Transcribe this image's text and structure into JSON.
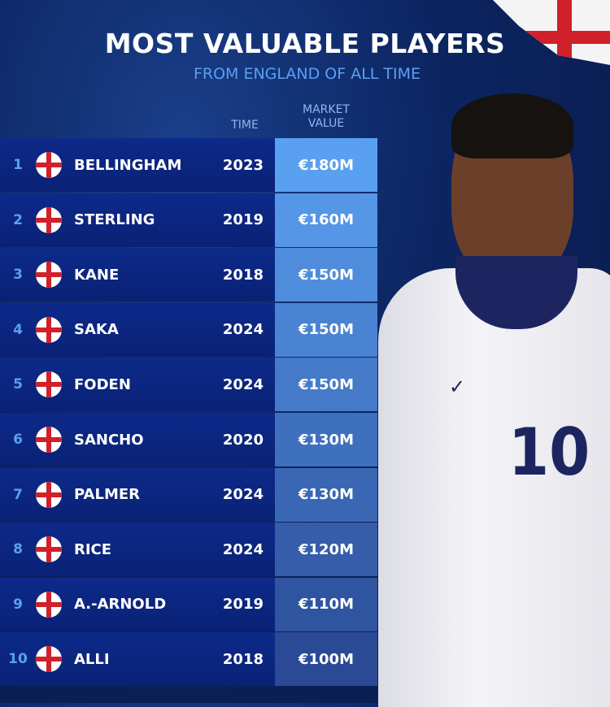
{
  "title": "MOST VALUABLE PLAYERS",
  "subtitle": "FROM ENGLAND OF ALL TIME",
  "headers": {
    "time": "TIME",
    "market_value_1": "MARKET",
    "market_value_2": "VALUE"
  },
  "colors": {
    "value_cell_top": "#5aa0f0",
    "value_cell_bottom": "#2a4a96",
    "row_bg": "#0d2a8a",
    "accent": "#5aa0f0"
  },
  "player_shirt_number": "10",
  "rows": [
    {
      "rank": "1",
      "name": "BELLINGHAM",
      "year": "2023",
      "value": "€180M",
      "flag": "england-flag"
    },
    {
      "rank": "2",
      "name": "STERLING",
      "year": "2019",
      "value": "€160M",
      "flag": "england-flag"
    },
    {
      "rank": "3",
      "name": "KANE",
      "year": "2018",
      "value": "€150M",
      "flag": "england-flag"
    },
    {
      "rank": "4",
      "name": "SAKA",
      "year": "2024",
      "value": "€150M",
      "flag": "england-flag"
    },
    {
      "rank": "5",
      "name": "FODEN",
      "year": "2024",
      "value": "€150M",
      "flag": "england-flag"
    },
    {
      "rank": "6",
      "name": "SANCHO",
      "year": "2020",
      "value": "€130M",
      "flag": "england-flag"
    },
    {
      "rank": "7",
      "name": "PALMER",
      "year": "2024",
      "value": "€130M",
      "flag": "england-flag"
    },
    {
      "rank": "8",
      "name": "RICE",
      "year": "2024",
      "value": "€120M",
      "flag": "england-flag"
    },
    {
      "rank": "9",
      "name": "A.-ARNOLD",
      "year": "2019",
      "value": "€110M",
      "flag": "england-flag"
    },
    {
      "rank": "10",
      "name": "ALLI",
      "year": "2018",
      "value": "€100M",
      "flag": "england-flag"
    }
  ]
}
